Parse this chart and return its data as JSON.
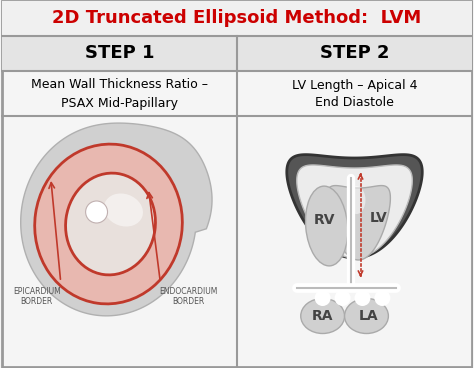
{
  "title": "2D Truncated Ellipsoid Method:  LVM",
  "title_color": "#cc0000",
  "title_bg": "#f0f0f0",
  "step1_label": "STEP 1",
  "step2_label": "STEP 2",
  "step1_desc": "Mean Wall Thickness Ratio –\nPSAX Mid-Papillary",
  "step2_desc": "LV Length – Apical 4\nEnd Diastole",
  "bg_color": "#f5f5f5",
  "border_color": "#999999",
  "red_color": "#c0392b",
  "dark_gray": "#444444",
  "light_gray_shape": "#d8d8d8",
  "myocardium_fill": "#e8b8b0",
  "white": "#ffffff",
  "step_bg": "#e4e4e4",
  "heart_dark": "#555555",
  "heart_light": "#e8e8e8",
  "heart_cavity": "#d0d0d0",
  "epi_text": "EPICARDIUM\nBORDER",
  "endo_text": "ENDOCARDIUM\nBORDER"
}
